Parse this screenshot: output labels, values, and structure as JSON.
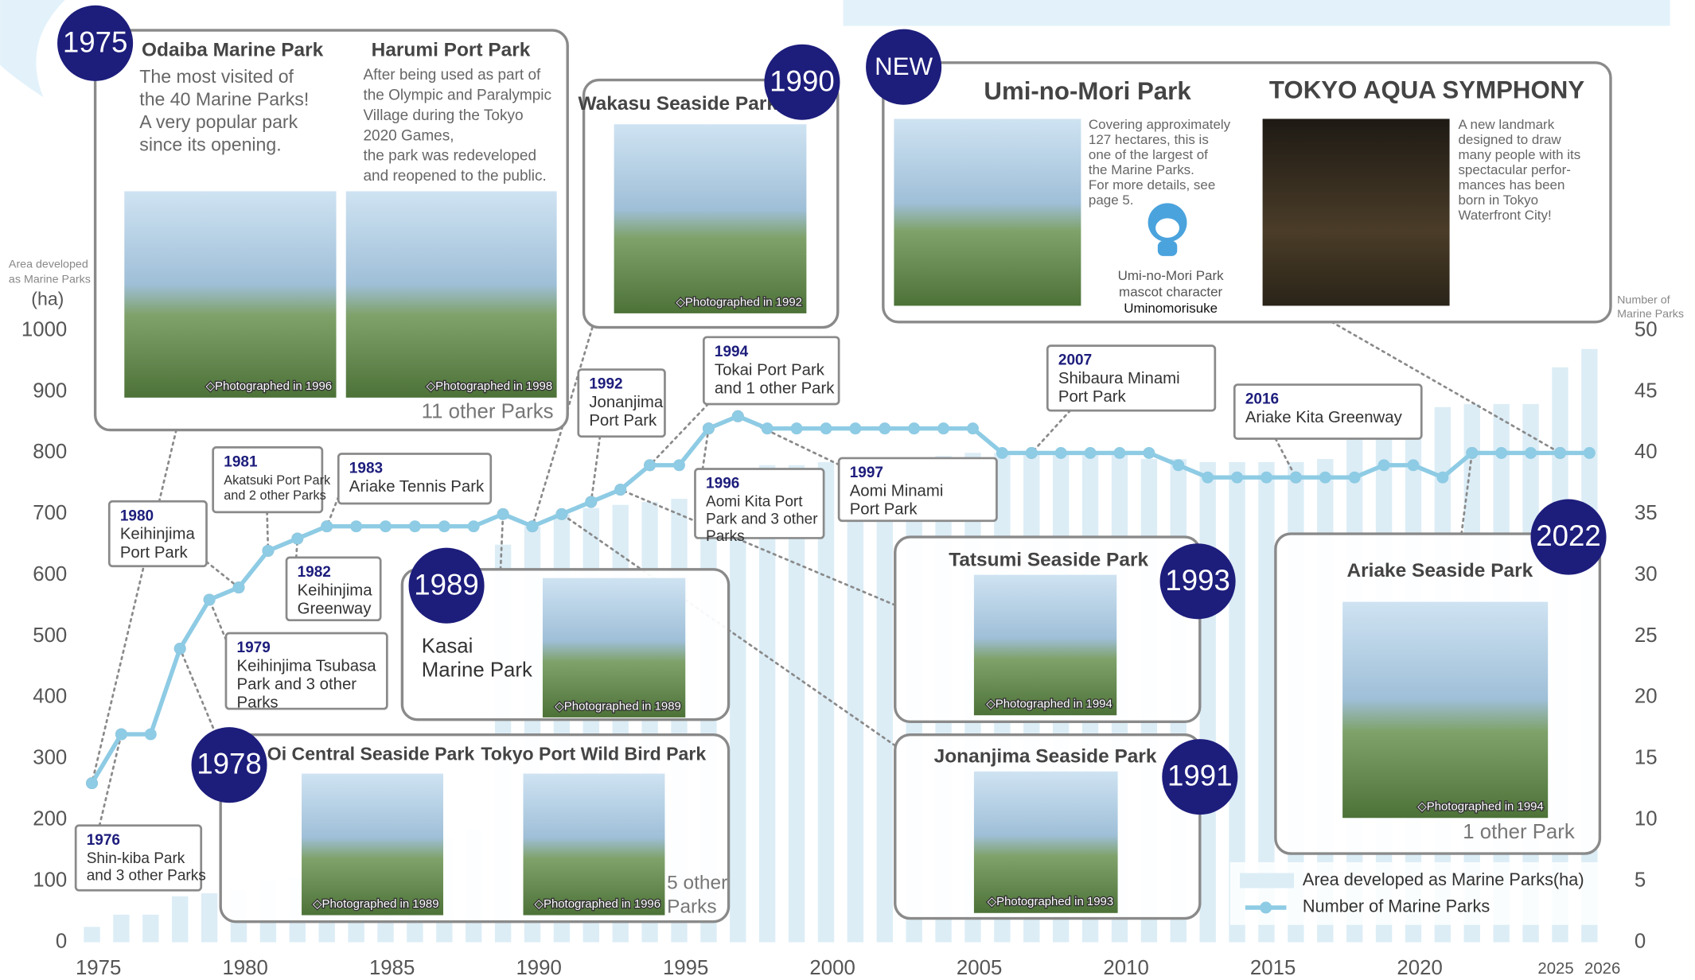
{
  "chart_data": {
    "type": "bar-line",
    "x": [
      1975,
      1976,
      1977,
      1978,
      1979,
      1980,
      1981,
      1982,
      1983,
      1984,
      1985,
      1986,
      1987,
      1988,
      1989,
      1990,
      1991,
      1992,
      1993,
      1994,
      1995,
      1996,
      1997,
      1998,
      1999,
      2000,
      2001,
      2002,
      2003,
      2004,
      2005,
      2006,
      2007,
      2008,
      2009,
      2010,
      2011,
      2012,
      2013,
      2014,
      2015,
      2016,
      2017,
      2018,
      2019,
      2020,
      2021,
      2022,
      2023,
      2024,
      2025,
      2026
    ],
    "series": [
      {
        "name": "Area developed as Marine Parks(ha)",
        "type": "bar",
        "color": "#dcedf6",
        "values": [
          25,
          45,
          45,
          75,
          80,
          85,
          100,
          105,
          110,
          120,
          130,
          150,
          170,
          185,
          650,
          680,
          700,
          710,
          715,
          720,
          725,
          760,
          770,
          780,
          780,
          785,
          790,
          790,
          790,
          795,
          800,
          800,
          800,
          800,
          800,
          800,
          790,
          790,
          785,
          785,
          785,
          785,
          790,
          830,
          840,
          870,
          875,
          880,
          880,
          880,
          940,
          970
        ]
      },
      {
        "name": "Number of Marine Parks",
        "type": "line",
        "color": "#8ecbe4",
        "axis": "y2",
        "values": [
          13,
          17,
          17,
          24,
          28,
          29,
          32,
          33,
          34,
          34,
          34,
          34,
          34,
          34,
          35,
          34,
          35,
          36,
          37,
          39,
          39,
          42,
          43,
          42,
          42,
          42,
          42,
          42,
          42,
          42,
          42,
          40,
          40,
          40,
          40,
          40,
          40,
          39,
          38,
          38,
          38,
          38,
          38,
          38,
          39,
          39,
          38,
          40,
          40,
          40,
          40,
          40
        ]
      }
    ],
    "xlim": [
      1974.5,
      2026.5
    ],
    "xticks": [
      1975,
      1980,
      1985,
      1990,
      1995,
      2000,
      2005,
      2010,
      2015,
      2020,
      2025,
      2026
    ],
    "ylim": [
      0,
      1000
    ],
    "yticks": [
      0,
      100,
      200,
      300,
      400,
      500,
      600,
      700,
      800,
      900,
      1000
    ],
    "y2lim": [
      0,
      50
    ],
    "y2ticks": [
      0,
      5,
      10,
      15,
      20,
      25,
      30,
      35,
      40,
      45,
      50
    ],
    "ylabel": [
      "Area developed",
      "as Marine Parks"
    ],
    "yunit": "(ha)",
    "y2label": [
      "Number of",
      "Marine Parks"
    ]
  },
  "callouts": [
    {
      "year": "1976",
      "lines": [
        "Shin-kiba Park",
        "and 3 other Parks"
      ]
    },
    {
      "year": "1979",
      "lines": [
        "Keihinjima Tsubasa",
        "Park and 3 other",
        "Parks"
      ]
    },
    {
      "year": "1980",
      "lines": [
        "Keihinjima",
        "Port Park"
      ]
    },
    {
      "year": "1981",
      "lines": [
        "Akatsuki Port Park",
        "and 2 other Parks"
      ]
    },
    {
      "year": "1982",
      "lines": [
        "Keihinjima",
        "Greenway"
      ]
    },
    {
      "year": "1983",
      "lines": [
        "Ariake Tennis Park"
      ]
    },
    {
      "year": "1992",
      "lines": [
        "Jonanjima",
        "Port Park"
      ]
    },
    {
      "year": "1994",
      "lines": [
        "Tokai Port Park",
        "and 1 other Park"
      ]
    },
    {
      "year": "1996",
      "lines": [
        "Aomi Kita Port",
        "Park and 3 other",
        "Parks"
      ]
    },
    {
      "year": "1997",
      "lines": [
        "Aomi Minami",
        "Port Park"
      ]
    },
    {
      "year": "2007",
      "lines": [
        "Shibaura Minami",
        "Port Park"
      ]
    },
    {
      "year": "2016",
      "lines": [
        "Ariake Kita Greenway"
      ]
    }
  ],
  "cards": [
    {
      "badge": "1975",
      "parks": [
        {
          "name": "Odaiba Marine Park",
          "lines": [
            "The most visited of",
            "the 40 Marine Parks!",
            "A very popular park",
            "since its opening."
          ],
          "caption": "◇Photographed in 1996"
        },
        {
          "name": "Harumi Port Park",
          "lines": [
            "After being used as part of",
            "the Olympic and Paralympic",
            "Village during the Tokyo",
            "2020 Games,",
            "the park was redeveloped",
            "and reopened to the public."
          ],
          "caption": "◇Photographed in 1998"
        }
      ],
      "note_lines": [
        "11 other Parks"
      ]
    },
    {
      "badge": "1990",
      "parks": [
        {
          "name": "Wakasu Seaside Park",
          "caption": "◇Photographed in 1992"
        }
      ]
    },
    {
      "badge": "NEW",
      "parks": [
        {
          "name": "Umi-no-Mori Park",
          "lines": [
            "Covering approximately",
            "127 hectares, this is",
            "one of the largest of",
            "the Marine Parks.",
            "For more details, see",
            "page 5."
          ]
        },
        {
          "name": "TOKYO AQUA SYMPHONY",
          "lines": [
            "A new landmark",
            "designed to draw",
            "many people with its",
            "spectacular perfor-",
            "mances has been",
            "born in Tokyo",
            "Waterfront City!"
          ]
        }
      ],
      "mascot": {
        "lines": [
          "Umi-no-Mori Park",
          "mascot character"
        ],
        "name": "Uminomorisuke"
      }
    },
    {
      "badge": "1989",
      "parks": [
        {
          "lines": [
            "Kasai",
            "Marine Park"
          ],
          "caption": "◇Photographed in 1989"
        }
      ]
    },
    {
      "badge": "1978",
      "parks": [
        {
          "name": "Oi Central Seaside Park",
          "caption": "◇Photographed in 1989"
        },
        {
          "name": "Tokyo Port Wild Bird Park",
          "caption": "◇Photographed in 1996"
        }
      ],
      "note_lines": [
        "5 other",
        "Parks"
      ]
    },
    {
      "badge": "1993",
      "parks": [
        {
          "name": "Tatsumi Seaside Park",
          "caption": "◇Photographed in 1994"
        }
      ]
    },
    {
      "badge": "1991",
      "parks": [
        {
          "name": "Jonanjima Seaside Park",
          "caption": "◇Photographed in 1993"
        }
      ]
    },
    {
      "badge": "2022",
      "parks": [
        {
          "name": "Ariake Seaside Park",
          "caption": "◇Photographed in 1994"
        }
      ],
      "note_lines": [
        "1 other Park"
      ]
    }
  ]
}
